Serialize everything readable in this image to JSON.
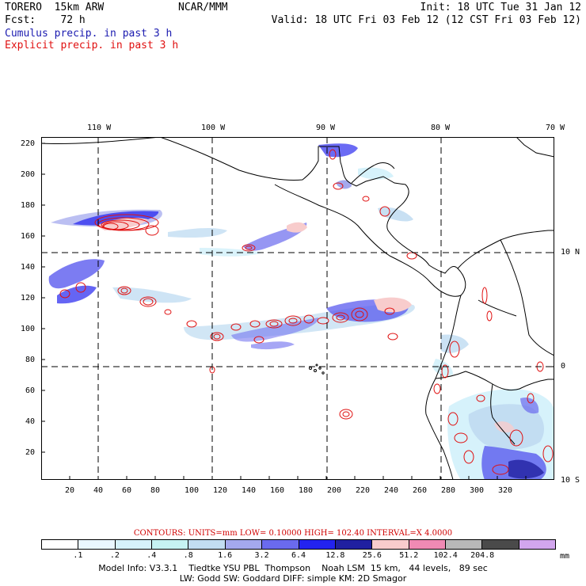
{
  "header": {
    "model": "TORERO  15km ARW",
    "center": "NCAR/MMM",
    "init": "Init: 18 UTC Tue 31 Jan 12",
    "fcst": "Fcst:    72 h",
    "valid": "Valid: 18 UTC Fri 03 Feb 12 (12 CST Fri 03 Feb 12)",
    "legend_cumulus": "Cumulus precip. in past 3 h",
    "legend_explicit": "Explicit precip. in past 3 h"
  },
  "colors": {
    "cumulus": "#1b1bb0",
    "explicit": "#e01010"
  },
  "map": {
    "top_lon_labels": [
      "110 W",
      "100 W",
      "90 W",
      "80 W",
      "70 W"
    ],
    "right_lat_labels": [
      "10 N",
      "0",
      "10 S"
    ],
    "y_ticks": [
      "220",
      "200",
      "180",
      "160",
      "140",
      "120",
      "100",
      "80",
      "60",
      "40",
      "20"
    ],
    "x_ticks": [
      "20",
      "40",
      "60",
      "80",
      "100",
      "120",
      "140",
      "160",
      "180",
      "200",
      "220",
      "240",
      "260",
      "280",
      "300",
      "320"
    ]
  },
  "colorbar": {
    "contours_text": "CONTOURS:  UNITS=mm  LOW= 0.10000      HIGH=  102.40      INTERVAL=X  4.0000",
    "labels": [
      ".1",
      ".2",
      ".4",
      ".8",
      "1.6",
      "3.2",
      "6.4",
      "12.8",
      "25.6",
      "51.2",
      "102.4",
      "204.8"
    ],
    "units": "mm",
    "colors": [
      "#ffffff",
      "#eaf7ff",
      "#d6f2fb",
      "#c6f3f3",
      "#c2ddf2",
      "#a4a9ee",
      "#6a6aee",
      "#2323f0",
      "#2020a0",
      "#f8cccc",
      "#f08ab4",
      "#b8b8b8",
      "#4a4a4a",
      "#d2a6ee"
    ]
  },
  "footer": {
    "line1": "Model Info: V3.3.1    Tiedtke YSU PBL  Thompson    Noah LSM  15 km,   44 levels,   89 sec",
    "line2": "LW: Godd SW: Goddard DIFF: simple KM: 2D Smagor"
  }
}
